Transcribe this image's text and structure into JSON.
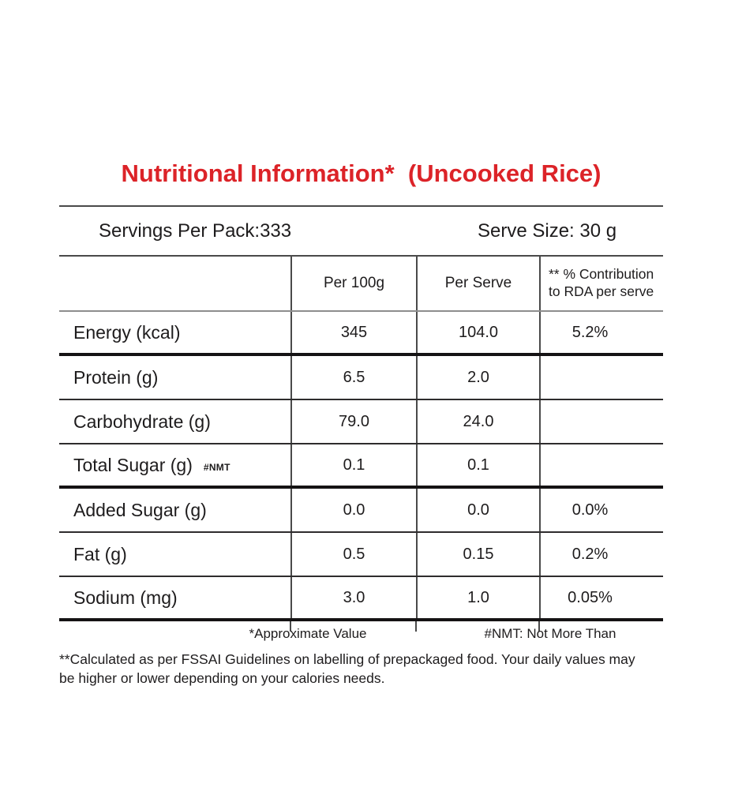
{
  "title": "Nutritional Information*  (Uncooked Rice)",
  "colors": {
    "title_red": "#dc2328",
    "text": "#1e1c1d",
    "rule_dark": "#4a4a4a",
    "rule_gray": "#8d8d8d",
    "rule_black": "#151314"
  },
  "meta": {
    "servings": "Servings Per Pack:333",
    "serve_size": "Serve Size: 30 g"
  },
  "table": {
    "header": {
      "nutrient": "",
      "per_100g": "Per 100g",
      "per_serve": "Per Serve",
      "rda": "** % Contribution\nto RDA per serve"
    },
    "rows": [
      {
        "label": "Energy (kcal)",
        "note": "",
        "per100g": "345",
        "perServe": "104.0",
        "rda": "5.2%"
      },
      {
        "label": "Protein (g)",
        "note": "",
        "per100g": "6.5",
        "perServe": "2.0",
        "rda": ""
      },
      {
        "label": "Carbohydrate (g)",
        "note": "",
        "per100g": "79.0",
        "perServe": "24.0",
        "rda": ""
      },
      {
        "label": "Total Sugar (g)",
        "note": "#NMT",
        "per100g": "0.1",
        "perServe": "0.1",
        "rda": ""
      },
      {
        "label": "Added Sugar (g)",
        "note": "",
        "per100g": "0.0",
        "perServe": "0.0",
        "rda": "0.0%"
      },
      {
        "label": "Fat (g)",
        "note": "",
        "per100g": "0.5",
        "perServe": "0.15",
        "rda": "0.2%"
      },
      {
        "label": "Sodium (mg)",
        "note": "",
        "per100g": "3.0",
        "perServe": "1.0",
        "rda": "0.05%"
      }
    ]
  },
  "footnotes": {
    "approx": "*Approximate Value",
    "nmt": "#NMT: Not More Than",
    "disclaimer": "**Calculated as per FSSAI Guidelines on labelling of prepackaged food. Your daily values may be higher or lower depending on your calories needs."
  }
}
